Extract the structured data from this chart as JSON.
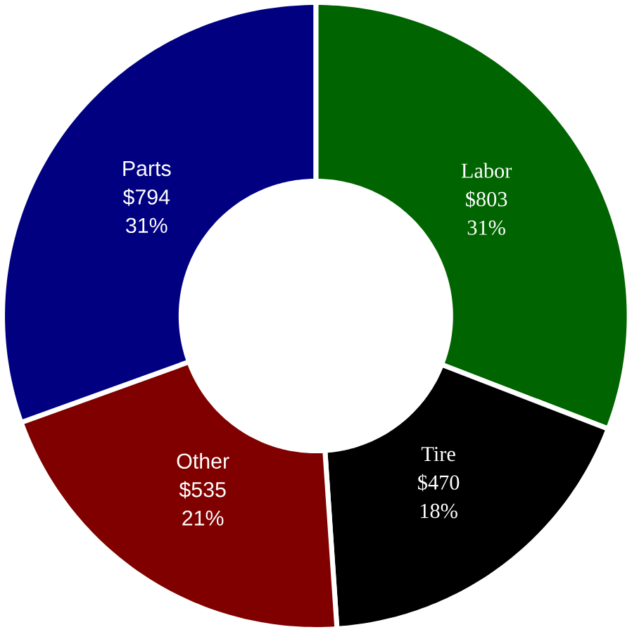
{
  "chart_data": {
    "type": "donut",
    "categories": [
      "Labor",
      "Tire",
      "Other",
      "Parts"
    ],
    "values": [
      803,
      470,
      535,
      794
    ],
    "colors": [
      "#006400",
      "#000000",
      "#800000",
      "#000080"
    ],
    "value_labels": [
      "$803",
      "$470",
      "$535",
      "$794"
    ],
    "annotations": [
      "31%",
      "18%",
      "21%",
      "31%"
    ]
  }
}
